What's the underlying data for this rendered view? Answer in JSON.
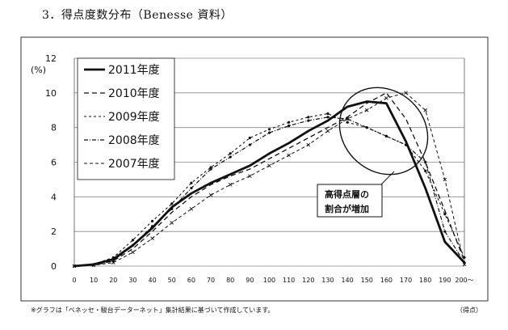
{
  "heading": "3．得点度数分布（Benesse 資料）",
  "footnote": "※グラフは「ベネッセ・駿台データーネット」集計結果に基づいて作成しています。",
  "unit_note": "（得点）",
  "chart_data": {
    "type": "line",
    "title": "",
    "xlabel": "（得点）",
    "ylabel": "(%)",
    "ylim": [
      0,
      12
    ],
    "yticks": [
      0,
      2,
      4,
      6,
      8,
      10,
      12
    ],
    "grid": true,
    "legend_position": "top-left",
    "categories": [
      "0",
      "10",
      "20",
      "30",
      "40",
      "50",
      "60",
      "70",
      "80",
      "90",
      "100",
      "110",
      "120",
      "130",
      "140",
      "150",
      "160",
      "170",
      "180",
      "190",
      "200～"
    ],
    "series": [
      {
        "name": "2011年度",
        "style": "solid-bold",
        "values": [
          0,
          0.1,
          0.4,
          1.2,
          2.2,
          3.4,
          4.2,
          4.8,
          5.3,
          5.8,
          6.5,
          7.1,
          7.8,
          8.4,
          9.2,
          9.5,
          9.4,
          7.2,
          4.5,
          1.4,
          0.2
        ]
      },
      {
        "name": "2010年度",
        "style": "dash",
        "values": [
          0,
          0.05,
          0.3,
          1.0,
          2.0,
          3.1,
          4.0,
          4.7,
          5.2,
          5.6,
          6.2,
          6.8,
          7.4,
          8.0,
          8.6,
          9.4,
          10.0,
          8.5,
          6.0,
          3.2,
          0.3
        ]
      },
      {
        "name": "2009年度",
        "style": "dot-dash",
        "values": [
          0,
          0.1,
          0.5,
          1.5,
          2.6,
          3.6,
          4.8,
          5.7,
          6.5,
          7.4,
          7.9,
          8.3,
          8.6,
          8.8,
          8.3,
          8.0,
          7.5,
          7.0,
          5.5,
          3.0,
          0.5
        ]
      },
      {
        "name": "2008年度",
        "style": "dash-dot-dense",
        "values": [
          0,
          0.05,
          0.3,
          1.2,
          2.3,
          3.3,
          4.5,
          5.6,
          6.3,
          7.0,
          7.7,
          8.1,
          8.4,
          8.6,
          8.5,
          8.0,
          7.5,
          7.0,
          6.0,
          2.0,
          0.2
        ]
      },
      {
        "name": "2007年度",
        "style": "dash-cross",
        "values": [
          0,
          0.05,
          0.2,
          0.8,
          1.6,
          2.5,
          3.3,
          4.1,
          4.7,
          5.2,
          5.8,
          6.4,
          7.0,
          7.8,
          8.5,
          9.0,
          9.7,
          10.0,
          9.0,
          5.0,
          0.1
        ]
      }
    ],
    "annotations": [
      {
        "text_lines": [
          "高得点層の",
          "割合が増加"
        ]
      }
    ]
  }
}
